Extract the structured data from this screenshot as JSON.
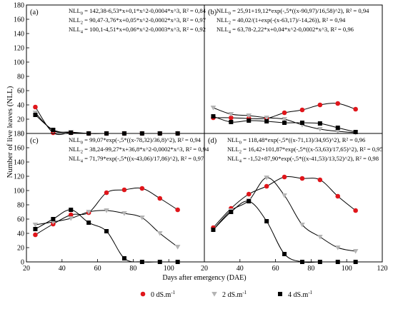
{
  "figure": {
    "ylabel": "Number of live leaves (NLL)",
    "xlabel": "Days after emergency (DAE)",
    "x_ticks": [
      20,
      40,
      60,
      80,
      100,
      120
    ],
    "y_ticks": [
      0,
      20,
      40,
      60,
      80,
      100,
      120,
      140,
      160,
      180
    ],
    "legend": [
      {
        "label": "0 dS.m",
        "sup": "-1",
        "marker": "circle",
        "color": "#e0161b"
      },
      {
        "label": "2 dS.m",
        "sup": "-1",
        "marker": "triangle-down",
        "color": "#b4b4b4"
      },
      {
        "label": "4 dS.m",
        "sup": "-1",
        "marker": "square",
        "color": "#000000"
      }
    ]
  },
  "chart_data": [
    {
      "type": "scatter",
      "panel": "(a)",
      "xlim": [
        20,
        120
      ],
      "ylim": [
        0,
        180
      ],
      "equations": [
        {
          "label": "NLL",
          "sub": "0",
          "text": " = 142,38-6,53*x+0,1*x^2-0,0004*x^3, R² = 0,84"
        },
        {
          "label": "NLL",
          "sub": "2",
          "text": " = 90,47-3,76*x+0,05*x^2-0,0002*x^3, R² = 0,97"
        },
        {
          "label": "NLL",
          "sub": "4",
          "text": " = 100,1-4,51*x+0,06*x^2-0,0003*x^3, R² = 0,92"
        }
      ],
      "series": [
        {
          "name": "0 dS.m-1",
          "marker": "circle",
          "color": "#e0161b",
          "x": [
            25,
            35,
            45,
            55,
            65,
            75,
            85,
            95,
            105
          ],
          "y": [
            37,
            1,
            1,
            0,
            0,
            0,
            0,
            0,
            0
          ]
        },
        {
          "name": "2 dS.m-1",
          "marker": "triangle-down",
          "color": "#b4b4b4",
          "x": [
            25,
            35,
            45,
            55,
            65,
            75,
            85,
            95,
            105
          ],
          "y": [
            29,
            4,
            2,
            0,
            0,
            0,
            0,
            0,
            0
          ]
        },
        {
          "name": "4 dS.m-1",
          "marker": "square",
          "color": "#000000",
          "x": [
            25,
            35,
            45,
            55,
            65,
            75,
            85,
            95,
            105
          ],
          "y": [
            26,
            5,
            1,
            0,
            0,
            0,
            0,
            0,
            0
          ]
        }
      ]
    },
    {
      "type": "scatter",
      "panel": "(b)",
      "xlim": [
        20,
        120
      ],
      "ylim": [
        0,
        180
      ],
      "equations": [
        {
          "label": "NLL",
          "sub": "0",
          "text": " = 25,91+19,12*exp(-,5*((x-90,97)/16,58)^2), R² = 0,94"
        },
        {
          "label": "NLL",
          "sub": "2",
          "text": " = 40,02/(1+exp(-(x-63,17)/-14,26)), R² = 0,94"
        },
        {
          "label": "NLL",
          "sub": "4",
          "text": " = 63,78-2,22*x+0,04*x^2-0,0002*x^3, R² = 0,96"
        }
      ],
      "series": [
        {
          "name": "0 dS.m-1",
          "marker": "circle",
          "color": "#e0161b",
          "x": [
            25,
            35,
            45,
            55,
            65,
            75,
            85,
            95,
            105
          ],
          "y": [
            22,
            22,
            21,
            21,
            29,
            33,
            40,
            42,
            34
          ]
        },
        {
          "name": "2 dS.m-1",
          "marker": "triangle-down",
          "color": "#b4b4b4",
          "x": [
            25,
            35,
            45,
            55,
            65,
            75,
            85,
            95,
            105
          ],
          "y": [
            36,
            27,
            25,
            22,
            20,
            12,
            6,
            3,
            1
          ]
        },
        {
          "name": "4 dS.m-1",
          "marker": "square",
          "color": "#000000",
          "x": [
            25,
            35,
            45,
            55,
            65,
            75,
            85,
            95,
            105
          ],
          "y": [
            24,
            16,
            18,
            17,
            15,
            15,
            14,
            8,
            2
          ]
        }
      ]
    },
    {
      "type": "scatter",
      "panel": "(c)",
      "xlim": [
        20,
        120
      ],
      "ylim": [
        0,
        180
      ],
      "equations": [
        {
          "label": "NLL",
          "sub": "0",
          "text": " = 99,07*exp(-,5*((x-78,32)/36,8)^2), R² = 0,94"
        },
        {
          "label": "NLL",
          "sub": "2",
          "text": " = 38,24-99,27*x+36,8*x^2-0,0002*x^3, R² = 0,94"
        },
        {
          "label": "NLL",
          "sub": "4",
          "text": " = 71,79*exp(-,5*((x-43,06)/17,86)^2), R² = 0,97"
        }
      ],
      "series": [
        {
          "name": "0 dS.m-1",
          "marker": "circle",
          "color": "#e0161b",
          "x": [
            25,
            35,
            45,
            55,
            65,
            75,
            85,
            95,
            105
          ],
          "y": [
            38,
            53,
            66,
            69,
            97,
            101,
            103,
            89,
            73
          ]
        },
        {
          "name": "2 dS.m-1",
          "marker": "triangle-down",
          "color": "#b4b4b4",
          "x": [
            25,
            35,
            45,
            55,
            65,
            75,
            85,
            95,
            105
          ],
          "y": [
            52,
            56,
            61,
            70,
            72,
            68,
            62,
            40,
            21
          ]
        },
        {
          "name": "4 dS.m-1",
          "marker": "square",
          "color": "#000000",
          "x": [
            25,
            35,
            45,
            55,
            65,
            75,
            85,
            95,
            105
          ],
          "y": [
            46,
            60,
            73,
            55,
            43,
            5,
            0,
            0,
            0
          ]
        }
      ]
    },
    {
      "type": "scatter",
      "panel": "(d)",
      "xlim": [
        20,
        120
      ],
      "ylim": [
        0,
        180
      ],
      "equations": [
        {
          "label": "NLL",
          "sub": "0",
          "text": " = 118,48*exp(-,5*((x-71,13)/34,95)^2), R² = 0,96"
        },
        {
          "label": "NLL",
          "sub": "2",
          "text": " = 16,42+101,87*exp(-,5*((x-53,63)/17,65)^2), R² = 0,95"
        },
        {
          "label": "NLL",
          "sub": "4",
          "text": " = -1,52+87,90*exp(-,5*((x-41,53)/13,52)^2), R² = 0,98"
        }
      ],
      "series": [
        {
          "name": "0 dS.m-1",
          "marker": "circle",
          "color": "#e0161b",
          "x": [
            25,
            35,
            45,
            55,
            65,
            75,
            85,
            95,
            105
          ],
          "y": [
            48,
            75,
            95,
            106,
            119,
            117,
            115,
            92,
            72
          ]
        },
        {
          "name": "2 dS.m-1",
          "marker": "triangle-down",
          "color": "#b4b4b4",
          "x": [
            25,
            35,
            45,
            55,
            65,
            75,
            85,
            95,
            105
          ],
          "y": [
            45,
            72,
            86,
            118,
            93,
            52,
            35,
            20,
            15
          ]
        },
        {
          "name": "4 dS.m-1",
          "marker": "square",
          "color": "#000000",
          "x": [
            25,
            35,
            45,
            55,
            65,
            75,
            85,
            95,
            105
          ],
          "y": [
            45,
            70,
            85,
            57,
            11,
            0,
            0,
            0,
            0
          ]
        }
      ]
    }
  ]
}
